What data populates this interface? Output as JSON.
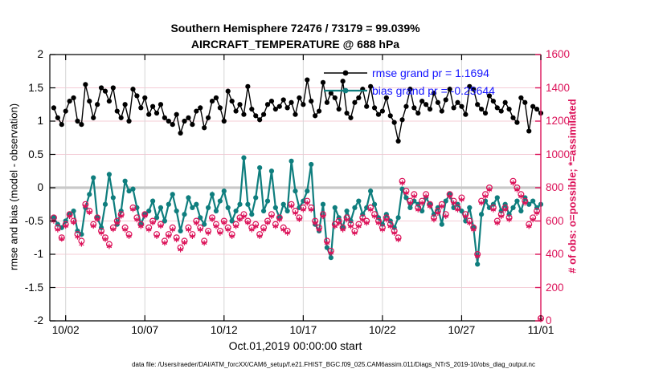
{
  "title": {
    "line1": "Southern Hemisphere 72476 / 73179 = 99.039%",
    "line2": "AIRCRAFT_TEMPERATURE @ 688 hPa"
  },
  "axes": {
    "left": {
      "label": "rmse and bias (model - observation)",
      "ticks": [
        "2",
        "1.5",
        "1",
        "0.5",
        "0",
        "-0.5",
        "-1",
        "-1.5",
        "-2"
      ],
      "tick_values": [
        2,
        1.5,
        1,
        0.5,
        0,
        -0.5,
        -1,
        -1.5,
        -2
      ],
      "range": [
        -2,
        2
      ],
      "color": "#000000"
    },
    "right": {
      "label": "# of obs: o=possible; *=assimilated",
      "ticks": [
        "1600",
        "1400",
        "1200",
        "1000",
        "800",
        "600",
        "400",
        "200",
        "0"
      ],
      "tick_values": [
        1600,
        1400,
        1200,
        1000,
        800,
        600,
        400,
        200,
        0
      ],
      "range": [
        0,
        1600
      ],
      "color": "#dc1259"
    },
    "x": {
      "label": "Oct.01,2019 00:00:00 start",
      "ticks": [
        "10/02",
        "10/07",
        "10/12",
        "10/17",
        "10/22",
        "10/27",
        "11/01"
      ],
      "tick_values": [
        1,
        6,
        11,
        16,
        21,
        26,
        31
      ],
      "range_days": [
        0,
        31
      ]
    }
  },
  "legend": [
    {
      "label": "rmse grand pr = 1.1694",
      "color": "#000000"
    },
    {
      "label": "bias grand pr = -0.25644",
      "color": "#0f7e7e"
    }
  ],
  "caption": "data file: /Users/raeder/DAI/ATM_forcXX/CAM6_setup/f.e21.FHIST_BGC.f09_025.CAM6assim.011/Diags_NTrS_2019-10/obs_diag_output.nc",
  "colors": {
    "rmse": "#000000",
    "bias": "#0f7e7e",
    "obs": "#dc1259",
    "legend_text": "#1414ff",
    "grid_h": "#f4ccd6",
    "grid_v": "#d6d6d6",
    "zero_line": "#c9c9c9"
  },
  "chart_data": {
    "type": "line",
    "title": "Southern Hemisphere 72476 / 73179 = 99.039% | AIRCRAFT_TEMPERATURE @ 688 hPa",
    "xlabel": "Oct.01,2019 00:00:00 start",
    "ylabel_left": "rmse and bias (model - observation)",
    "ylabel_right": "# of obs: o=possible; *=assimilated",
    "ylim_left": [
      -2,
      2
    ],
    "ylim_right": [
      0,
      1600
    ],
    "x_unit": "days since Oct 01 2019 00:00",
    "x_start_day": 0.25,
    "x_step_day": 0.25,
    "n_points": 124,
    "grid": true,
    "legend_position": "top-right-inside",
    "series": [
      {
        "name": "rmse",
        "axis": "left",
        "color": "#000000",
        "marker": "circle-filled",
        "line": true,
        "line_width": 1.4,
        "grand_pr": 1.1694,
        "values": [
          1.2,
          1.05,
          0.95,
          1.15,
          1.3,
          1.35,
          1.0,
          0.95,
          1.55,
          1.3,
          1.05,
          1.25,
          1.5,
          1.45,
          1.3,
          1.5,
          1.15,
          1.05,
          1.25,
          1.0,
          1.48,
          1.38,
          1.2,
          1.35,
          1.1,
          1.22,
          1.12,
          1.25,
          1.05,
          1.0,
          0.95,
          1.1,
          0.82,
          1.0,
          1.05,
          0.95,
          1.15,
          1.2,
          0.9,
          1.05,
          1.3,
          1.35,
          1.2,
          1.0,
          1.45,
          1.3,
          1.15,
          1.25,
          1.1,
          1.52,
          1.18,
          1.08,
          1.02,
          1.1,
          1.25,
          1.3,
          1.18,
          1.22,
          1.32,
          1.2,
          1.28,
          1.1,
          1.35,
          1.25,
          1.62,
          1.3,
          1.08,
          1.15,
          1.58,
          1.28,
          1.42,
          1.35,
          1.18,
          1.6,
          1.12,
          1.05,
          1.28,
          1.35,
          1.48,
          1.22,
          1.52,
          1.2,
          1.1,
          1.15,
          1.35,
          1.08,
          0.98,
          0.7,
          1.02,
          1.22,
          1.48,
          1.2,
          1.12,
          1.3,
          1.25,
          1.18,
          1.42,
          1.28,
          1.15,
          1.32,
          1.48,
          1.2,
          1.28,
          1.22,
          1.1,
          1.52,
          1.48,
          1.25,
          1.18,
          1.12,
          1.38,
          1.3,
          1.2,
          1.15,
          1.28,
          1.18,
          1.05,
          0.98,
          1.35,
          1.28,
          0.85,
          1.22,
          1.18,
          1.12
        ]
      },
      {
        "name": "bias",
        "axis": "left",
        "color": "#0f7e7e",
        "marker": "circle-filled",
        "line": true,
        "line_width": 2.2,
        "grand_pr": -0.25644,
        "values": [
          -0.45,
          -0.55,
          -0.6,
          -0.5,
          -0.4,
          -0.35,
          -0.65,
          -0.7,
          -0.3,
          -0.1,
          0.15,
          -0.45,
          -0.6,
          -0.25,
          0.2,
          -0.15,
          -0.55,
          -0.35,
          0.1,
          -0.05,
          -0.02,
          -0.3,
          -0.55,
          -0.4,
          -0.35,
          -0.2,
          -0.45,
          -0.3,
          -0.5,
          -0.25,
          -0.1,
          -0.35,
          -0.65,
          -0.4,
          -0.15,
          -0.3,
          -0.25,
          -0.45,
          -0.55,
          -0.3,
          -0.1,
          -0.35,
          -0.2,
          -0.05,
          -0.3,
          -0.5,
          -0.35,
          -0.25,
          0.45,
          -0.25,
          -0.4,
          -0.15,
          0.3,
          -0.35,
          -0.2,
          0.25,
          -0.3,
          -0.45,
          -0.25,
          -0.35,
          0.4,
          -0.05,
          -0.3,
          -0.2,
          -0.05,
          0.35,
          -0.55,
          -0.65,
          -0.25,
          -0.9,
          -1.05,
          -0.3,
          -0.45,
          -0.6,
          -0.35,
          -0.5,
          -0.3,
          -0.2,
          -0.4,
          -0.3,
          -0.05,
          -0.25,
          -0.45,
          -0.55,
          -0.4,
          -0.5,
          -0.6,
          -0.45,
          -0.02,
          -0.15,
          -0.3,
          -0.2,
          -0.25,
          -0.35,
          -0.15,
          -0.25,
          -0.4,
          -0.3,
          -0.55,
          -0.2,
          -0.1,
          -0.3,
          -0.25,
          -0.35,
          -0.5,
          -0.3,
          -0.6,
          -1.15,
          -0.4,
          -0.2,
          -0.3,
          -0.25,
          -0.15,
          -0.35,
          -0.25,
          -0.4,
          -0.3,
          -0.2,
          -0.35,
          -0.15,
          -0.25,
          -0.2,
          -0.3,
          -0.25
        ]
      },
      {
        "name": "possible",
        "axis": "right",
        "color": "#dc1259",
        "marker": "circle-open",
        "line": false,
        "values": [
          620,
          560,
          500,
          580,
          640,
          600,
          520,
          480,
          700,
          660,
          580,
          620,
          540,
          500,
          460,
          560,
          600,
          640,
          560,
          520,
          680,
          620,
          580,
          640,
          560,
          600,
          520,
          580,
          480,
          520,
          560,
          500,
          440,
          480,
          560,
          520,
          600,
          560,
          480,
          540,
          620,
          580,
          540,
          600,
          560,
          520,
          580,
          620,
          640,
          600,
          560,
          580,
          520,
          560,
          600,
          640,
          580,
          620,
          560,
          540,
          700,
          660,
          620,
          680,
          720,
          680,
          600,
          560,
          640,
          480,
          420,
          580,
          600,
          560,
          620,
          580,
          540,
          580,
          620,
          600,
          680,
          640,
          600,
          560,
          620,
          580,
          540,
          500,
          840,
          780,
          720,
          760,
          680,
          720,
          760,
          700,
          620,
          660,
          700,
          640,
          760,
          720,
          680,
          740,
          640,
          600,
          560,
          400,
          720,
          760,
          800,
          680,
          600,
          640,
          680,
          620,
          840,
          800,
          760,
          720,
          580,
          620,
          660,
          15
        ]
      },
      {
        "name": "assimilated",
        "axis": "right",
        "color": "#dc1259",
        "marker": "asterisk",
        "line": false,
        "values": [
          600,
          548,
          492,
          570,
          628,
          592,
          505,
          462,
          690,
          652,
          570,
          610,
          528,
          490,
          448,
          550,
          588,
          630,
          548,
          508,
          670,
          608,
          568,
          630,
          548,
          590,
          508,
          570,
          468,
          510,
          548,
          488,
          428,
          470,
          548,
          508,
          588,
          548,
          468,
          528,
          610,
          568,
          528,
          590,
          548,
          508,
          568,
          610,
          628,
          590,
          548,
          568,
          508,
          548,
          590,
          628,
          568,
          608,
          548,
          528,
          690,
          648,
          610,
          668,
          708,
          668,
          588,
          548,
          628,
          468,
          408,
          568,
          588,
          548,
          608,
          568,
          528,
          568,
          608,
          588,
          668,
          628,
          588,
          548,
          608,
          568,
          528,
          488,
          828,
          768,
          708,
          748,
          668,
          708,
          748,
          688,
          608,
          648,
          688,
          628,
          748,
          708,
          668,
          728,
          628,
          588,
          548,
          388,
          708,
          748,
          788,
          668,
          588,
          628,
          668,
          608,
          828,
          788,
          748,
          708,
          568,
          608,
          648,
          8
        ]
      }
    ]
  }
}
